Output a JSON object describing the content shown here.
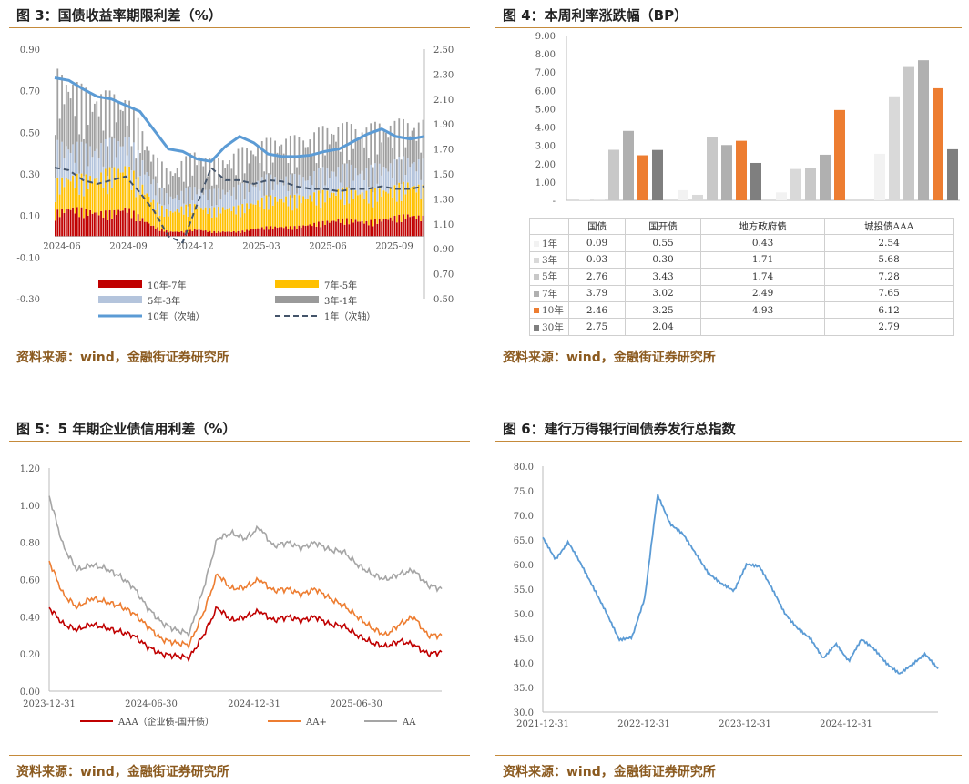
{
  "panels": {
    "p3": {
      "title": "图 3：国债收益率期限利差（%）",
      "source": "资料来源：wind，金融街证券研究所"
    },
    "p4": {
      "title": "图 4：本周利率涨跌幅（BP）",
      "source": "资料来源：wind，金融街证券研究所"
    },
    "p5": {
      "title": "图 5：5 年期企业债信用利差（%）",
      "source": "资料来源：wind，金融街证券研究所"
    },
    "p6": {
      "title": "图 6：建行万得银行间债券发行总指数",
      "source": "资料来源：wind，金融街证券研究所"
    }
  },
  "colors": {
    "accent_line": "#c58a3a",
    "source_text": "#8b5a1f"
  },
  "chart_data": [
    {
      "id": "fig3",
      "type": "area",
      "title": "国债收益率期限利差（%）",
      "x_ticks": [
        "2024-06",
        "2024-09",
        "2024-12",
        "2025-03",
        "2025-06",
        "2025-09"
      ],
      "y_left_ticks": [
        "0.90",
        "0.70",
        "0.50",
        "0.30",
        "0.10",
        "-0.10",
        "-0.30"
      ],
      "y_left_lim": [
        -0.3,
        0.9
      ],
      "y_right_ticks": [
        "2.50",
        "2.30",
        "2.10",
        "1.90",
        "1.70",
        "1.50",
        "1.30",
        "1.10",
        "0.90",
        "0.70",
        "0.50"
      ],
      "y_right_lim": [
        0.5,
        2.5
      ],
      "legend": [
        {
          "label": "10年-7年",
          "color": "#c00000",
          "kind": "bar"
        },
        {
          "label": "7年-5年",
          "color": "#ffc000",
          "kind": "bar"
        },
        {
          "label": "5年-3年",
          "color": "#b4c4dc",
          "kind": "bar"
        },
        {
          "label": "3年-1年",
          "color": "#9a9a9a",
          "kind": "bar"
        },
        {
          "label": "10年（次轴）",
          "color": "#5b9bd5",
          "kind": "line"
        },
        {
          "label": "1年（次轴）",
          "color": "#44546a",
          "kind": "dash"
        }
      ],
      "series_approx": {
        "y10_secondary": [
          2.27,
          2.25,
          2.18,
          2.12,
          2.1,
          2.05,
          2.0,
          1.85,
          1.7,
          1.68,
          1.62,
          1.6,
          1.72,
          1.8,
          1.75,
          1.66,
          1.64,
          1.64,
          1.65,
          1.68,
          1.7,
          1.76,
          1.82,
          1.86,
          1.8,
          1.78,
          1.8
        ],
        "y1_secondary": [
          1.55,
          1.53,
          1.45,
          1.42,
          1.45,
          1.48,
          1.35,
          1.2,
          1.0,
          0.95,
          1.25,
          1.55,
          1.45,
          1.45,
          1.42,
          1.45,
          1.44,
          1.4,
          1.38,
          1.38,
          1.36,
          1.38,
          1.38,
          1.4,
          1.38,
          1.38,
          1.4
        ],
        "spread_10_7": [
          0.1,
          0.12,
          0.11,
          0.1,
          0.1,
          0.12,
          0.08,
          0.04,
          0.02,
          0.02,
          0.03,
          0.02,
          0.02,
          0.02,
          0.03,
          0.04,
          0.04,
          0.04,
          0.05,
          0.06,
          0.07,
          0.07,
          0.06,
          0.07,
          0.08,
          0.09,
          0.08
        ],
        "spread_7_5": [
          0.12,
          0.13,
          0.13,
          0.15,
          0.17,
          0.17,
          0.14,
          0.1,
          0.08,
          0.1,
          0.1,
          0.09,
          0.1,
          0.1,
          0.11,
          0.12,
          0.12,
          0.12,
          0.12,
          0.12,
          0.12,
          0.12,
          0.12,
          0.12,
          0.12,
          0.13,
          0.12
        ],
        "spread_5_3": [
          0.15,
          0.13,
          0.12,
          0.12,
          0.11,
          0.12,
          0.1,
          0.08,
          0.06,
          0.06,
          0.07,
          0.07,
          0.07,
          0.08,
          0.08,
          0.08,
          0.08,
          0.08,
          0.08,
          0.09,
          0.09,
          0.09,
          0.09,
          0.1,
          0.1,
          0.1,
          0.1
        ],
        "spread_3_1": [
          0.28,
          0.25,
          0.22,
          0.2,
          0.18,
          0.15,
          0.12,
          0.1,
          0.1,
          0.12,
          0.14,
          0.12,
          0.12,
          0.14,
          0.14,
          0.14,
          0.15,
          0.15,
          0.15,
          0.16,
          0.16,
          0.16,
          0.16,
          0.16,
          0.15,
          0.14,
          0.15
        ]
      }
    },
    {
      "id": "fig4",
      "type": "bar",
      "title": "本周利率涨跌幅（BP）",
      "categories": [
        "国债",
        "国开债",
        "地方政府债",
        "城投债AAA"
      ],
      "y_ticks": [
        "9.00",
        "8.00",
        "7.00",
        "6.00",
        "5.00",
        "4.00",
        "3.00",
        "2.00",
        "1.00",
        "-"
      ],
      "ylim": [
        0,
        9
      ],
      "series": [
        {
          "name": "1年",
          "color": "#f2f2f2",
          "values": [
            "0.09",
            "0.55",
            "0.43",
            "2.54"
          ]
        },
        {
          "name": "3年",
          "color": "#d9d9d9",
          "values": [
            "0.03",
            "0.30",
            "1.71",
            "5.68"
          ]
        },
        {
          "name": "5年",
          "color": "#c8c8c8",
          "values": [
            "2.76",
            "3.43",
            "1.74",
            "7.28"
          ]
        },
        {
          "name": "7年",
          "color": "#b0b0b0",
          "values": [
            "3.79",
            "3.02",
            "2.49",
            "7.65"
          ]
        },
        {
          "name": "10年",
          "color": "#ed7d31",
          "values": [
            "2.46",
            "3.25",
            "4.93",
            "6.12"
          ]
        },
        {
          "name": "30年",
          "color": "#7f7f7f",
          "values": [
            "2.75",
            "2.04",
            "",
            "2.79"
          ]
        }
      ]
    },
    {
      "id": "fig5",
      "type": "line",
      "title": "5 年期企业债信用利差（%）",
      "x_ticks": [
        "2023-12-31",
        "2024-06-30",
        "2024-12-31",
        "2025-06-30"
      ],
      "y_ticks": [
        "1.20",
        "1.00",
        "0.80",
        "0.60",
        "0.40",
        "0.20",
        "0.00"
      ],
      "ylim": [
        0,
        1.2
      ],
      "series": [
        {
          "name": "AAA（企业债-国开债）",
          "color": "#c00000",
          "values": [
            0.45,
            0.36,
            0.33,
            0.36,
            0.34,
            0.32,
            0.3,
            0.24,
            0.2,
            0.19,
            0.18,
            0.3,
            0.45,
            0.38,
            0.4,
            0.43,
            0.38,
            0.4,
            0.38,
            0.4,
            0.36,
            0.35,
            0.3,
            0.26,
            0.24,
            0.27,
            0.25,
            0.2,
            0.21
          ]
        },
        {
          "name": "AA+",
          "color": "#ed7d31",
          "values": [
            0.7,
            0.52,
            0.45,
            0.5,
            0.48,
            0.46,
            0.42,
            0.35,
            0.28,
            0.26,
            0.25,
            0.42,
            0.63,
            0.55,
            0.56,
            0.6,
            0.54,
            0.55,
            0.52,
            0.55,
            0.5,
            0.46,
            0.4,
            0.34,
            0.3,
            0.36,
            0.4,
            0.3,
            0.3
          ]
        },
        {
          "name": "AA",
          "color": "#a5a5a5",
          "values": [
            1.05,
            0.78,
            0.65,
            0.68,
            0.66,
            0.62,
            0.56,
            0.45,
            0.37,
            0.33,
            0.31,
            0.55,
            0.82,
            0.85,
            0.82,
            0.88,
            0.78,
            0.8,
            0.77,
            0.8,
            0.76,
            0.75,
            0.68,
            0.63,
            0.6,
            0.63,
            0.65,
            0.57,
            0.55
          ]
        }
      ]
    },
    {
      "id": "fig6",
      "type": "line",
      "title": "建行万得银行间债券发行总指数",
      "x_ticks": [
        "2021-12-31",
        "2022-12-31",
        "2023-12-31",
        "2024-12-31"
      ],
      "y_ticks": [
        "80.0",
        "75.0",
        "70.0",
        "65.0",
        "60.0",
        "55.0",
        "50.0",
        "45.0",
        "40.0",
        "35.0",
        "30.0"
      ],
      "ylim": [
        30,
        80
      ],
      "series": [
        {
          "name": "指数",
          "color": "#5b9bd5",
          "values": [
            65.5,
            61,
            64.5,
            60,
            55,
            50,
            44.5,
            45,
            53,
            74,
            68,
            66,
            62,
            58,
            56,
            54.5,
            60,
            59.5,
            55,
            50,
            47,
            45,
            41,
            44,
            40.5,
            45,
            43,
            40,
            38,
            40,
            42,
            39
          ]
        }
      ]
    }
  ]
}
